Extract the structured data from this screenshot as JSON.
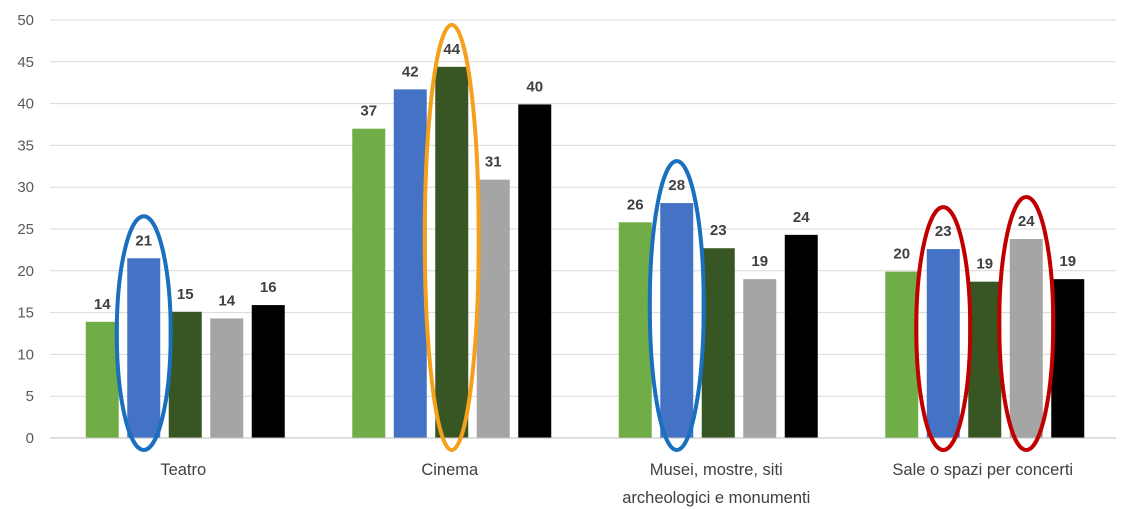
{
  "chart_data": {
    "type": "bar",
    "title": "",
    "xlabel": "",
    "ylabel": "",
    "ylim": [
      0,
      50
    ],
    "yticks": [
      0,
      5,
      10,
      15,
      20,
      25,
      30,
      35,
      40,
      45,
      50
    ],
    "grid": true,
    "legend": "none",
    "categories": [
      [
        "Teatro"
      ],
      [
        "Cinema"
      ],
      [
        "Musei, mostre, siti",
        "archeologici e monumenti"
      ],
      [
        "Sale o spazi per concerti"
      ]
    ],
    "series": [
      {
        "color": "#70ad47",
        "values": [
          13.9,
          37.0,
          25.8,
          19.9
        ],
        "labels": [
          "14",
          "37",
          "26",
          "20"
        ]
      },
      {
        "color": "#4472c4",
        "values": [
          21.5,
          41.7,
          28.1,
          22.6
        ],
        "labels": [
          "21",
          "42",
          "28",
          "23"
        ]
      },
      {
        "color": "#375623",
        "values": [
          15.1,
          44.4,
          22.7,
          18.7
        ],
        "labels": [
          "15",
          "44",
          "23",
          "19"
        ]
      },
      {
        "color": "#a5a5a5",
        "values": [
          14.3,
          30.9,
          19.0,
          23.8
        ],
        "labels": [
          "14",
          "31",
          "19",
          "24"
        ]
      },
      {
        "color": "#000000",
        "values": [
          15.9,
          39.9,
          24.3,
          19.0
        ],
        "labels": [
          "16",
          "40",
          "24",
          "19"
        ]
      }
    ],
    "highlights": [
      {
        "category": 0,
        "series": [
          1
        ],
        "color": "#1a6fbf"
      },
      {
        "category": 1,
        "series": [
          2
        ],
        "color": "#f5a01a"
      },
      {
        "category": 2,
        "series": [
          1
        ],
        "color": "#1a6fbf"
      },
      {
        "category": 3,
        "series": [
          1
        ],
        "color": "#c00000"
      },
      {
        "category": 3,
        "series": [
          3
        ],
        "color": "#c00000"
      }
    ],
    "colors": {
      "gridline": "#d9d9d9",
      "axis": "#bfbfbf"
    }
  }
}
